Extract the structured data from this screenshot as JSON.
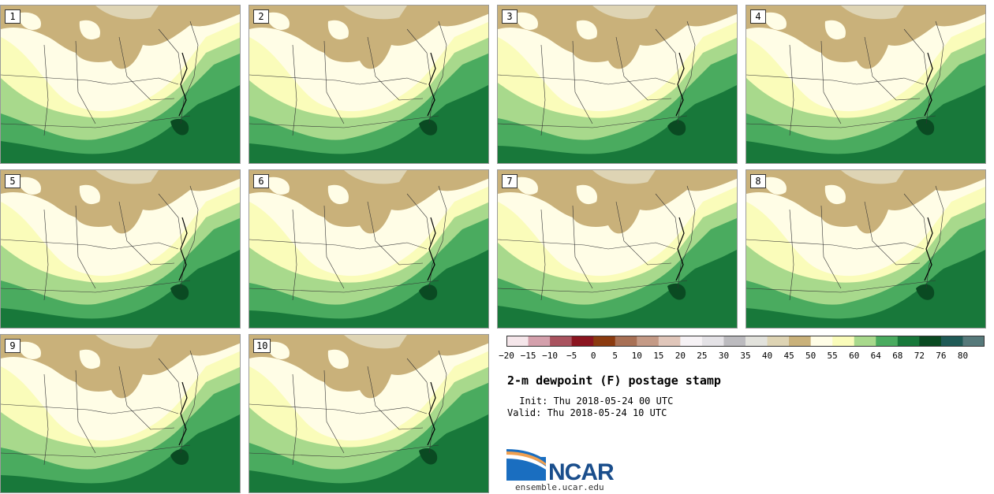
{
  "title": "2-m dewpoint (F) postage stamp",
  "init_text": " Init: Thu 2018-05-24 00 UTC",
  "valid_text": "Valid: Thu 2018-05-24 10 UTC",
  "logo": {
    "name": "NCAR",
    "url": "ensemble.ucar.edu"
  },
  "members": [
    "1",
    "2",
    "3",
    "4",
    "5",
    "6",
    "7",
    "8",
    "9",
    "10"
  ],
  "colorbar": {
    "ticks": [
      "−20",
      "−15",
      "−10",
      "−5",
      "0",
      "5",
      "10",
      "15",
      "20",
      "25",
      "30",
      "35",
      "40",
      "45",
      "50",
      "55",
      "60",
      "64",
      "68",
      "72",
      "76",
      "80"
    ],
    "colors": [
      "#f5e6ea",
      "#d4a0ac",
      "#a9535f",
      "#8b1520",
      "#8b3b10",
      "#a87055",
      "#c49a86",
      "#e0c6ba",
      "#f6f2f5",
      "#e4e2e6",
      "#bcbbbf",
      "#e2e2dc",
      "#ded4b4",
      "#c9b17a",
      "#fffde6",
      "#fafcba",
      "#a8d98c",
      "#4aab5f",
      "#18783a",
      "#0a4a22",
      "#1f5a56",
      "#56797a"
    ]
  },
  "map_colors": {
    "dry": "#c9b17a",
    "lightdry": "#ded4b4",
    "pale": "#fffde6",
    "yellow": "#fafcba",
    "lightgreen": "#a8d98c",
    "green": "#4aab5f",
    "dark": "#18783a",
    "darkest": "#0a4a22"
  }
}
